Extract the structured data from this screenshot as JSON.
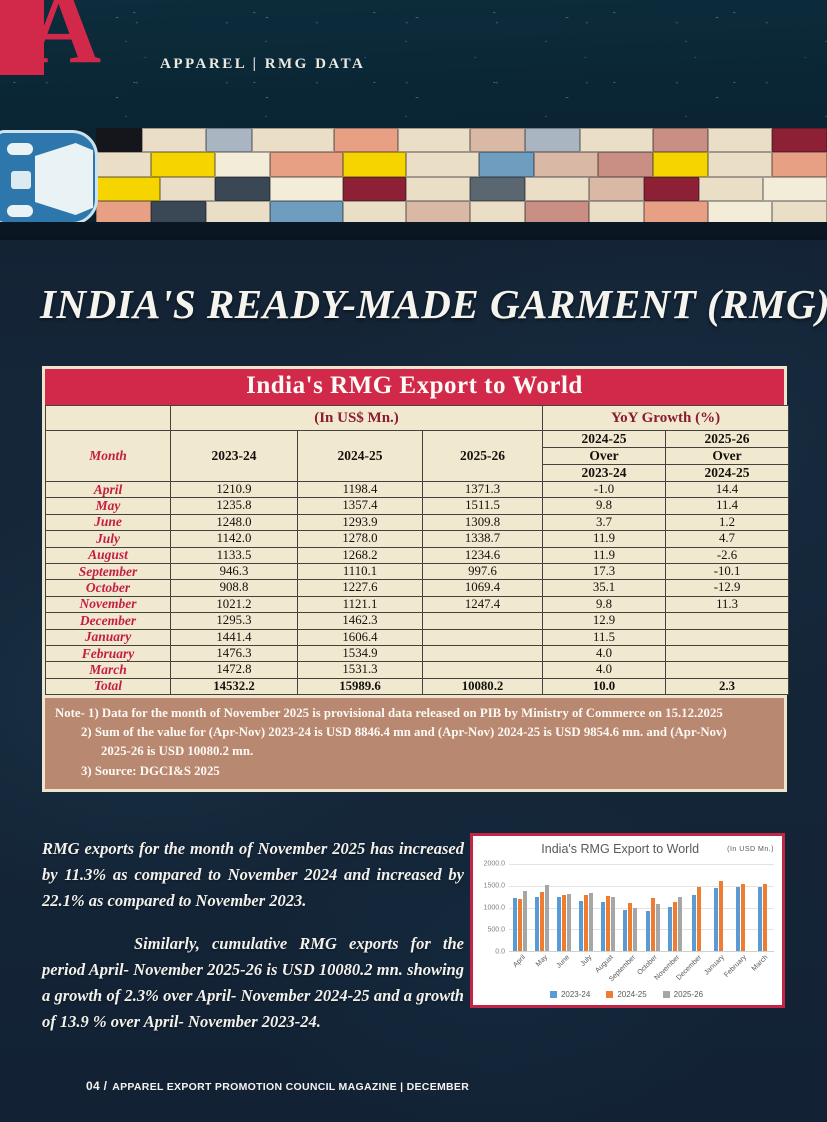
{
  "header": {
    "logo_letter": "A",
    "tagline": "APPAREL | RMG DATA"
  },
  "page_title": "INDIA'S READY-MADE GARMENT (RMG)",
  "table": {
    "title": "India's RMG Export to World",
    "unit_header": "(In US$ Mn.)",
    "yoy_header": "YoY Growth (%)",
    "month_header": "Month",
    "year_columns": [
      "2023-24",
      "2024-25",
      "2025-26"
    ],
    "yoy_col1": [
      "2024-25",
      "Over",
      "2023-24"
    ],
    "yoy_col2": [
      "2025-26",
      "Over",
      "2024-25"
    ],
    "rows": [
      {
        "month": "April",
        "v2023": "1210.9",
        "v2024": "1198.4",
        "v2025": "1371.3",
        "g1": "-1.0",
        "g2": "14.4"
      },
      {
        "month": "May",
        "v2023": "1235.8",
        "v2024": "1357.4",
        "v2025": "1511.5",
        "g1": "9.8",
        "g2": "11.4"
      },
      {
        "month": "June",
        "v2023": "1248.0",
        "v2024": "1293.9",
        "v2025": "1309.8",
        "g1": "3.7",
        "g2": "1.2"
      },
      {
        "month": "July",
        "v2023": "1142.0",
        "v2024": "1278.0",
        "v2025": "1338.7",
        "g1": "11.9",
        "g2": "4.7"
      },
      {
        "month": "August",
        "v2023": "1133.5",
        "v2024": "1268.2",
        "v2025": "1234.6",
        "g1": "11.9",
        "g2": "-2.6"
      },
      {
        "month": "September",
        "v2023": "946.3",
        "v2024": "1110.1",
        "v2025": "997.6",
        "g1": "17.3",
        "g2": "-10.1"
      },
      {
        "month": "October",
        "v2023": "908.8",
        "v2024": "1227.6",
        "v2025": "1069.4",
        "g1": "35.1",
        "g2": "-12.9"
      },
      {
        "month": "November",
        "v2023": "1021.2",
        "v2024": "1121.1",
        "v2025": "1247.4",
        "g1": "9.8",
        "g2": "11.3"
      },
      {
        "month": "December",
        "v2023": "1295.3",
        "v2024": "1462.3",
        "v2025": "",
        "g1": "12.9",
        "g2": ""
      },
      {
        "month": "January",
        "v2023": "1441.4",
        "v2024": "1606.4",
        "v2025": "",
        "g1": "11.5",
        "g2": ""
      },
      {
        "month": "February",
        "v2023": "1476.3",
        "v2024": "1534.9",
        "v2025": "",
        "g1": "4.0",
        "g2": ""
      },
      {
        "month": "March",
        "v2023": "1472.8",
        "v2024": "1531.3",
        "v2025": "",
        "g1": "4.0",
        "g2": ""
      },
      {
        "month": "Total",
        "v2023": "14532.2",
        "v2024": "15989.6",
        "v2025": "10080.2",
        "g1": "10.0",
        "g2": "2.3",
        "total": true
      }
    ]
  },
  "note": {
    "lines": [
      "Note- 1) Data for the month of November 2025 is provisional data released on PIB by Ministry of Commerce on 15.12.2025",
      "2) Sum of the value for (Apr-Nov) 2023-24 is USD 8846.4 mn and (Apr-Nov) 2024-25 is USD 9854.6 mn. and (Apr-Nov)",
      "2025-26 is USD 10080.2 mn.",
      "3) Source: DGCI&S 2025"
    ]
  },
  "body": {
    "paragraph1": "RMG exports for the month of November 2025 has increased by 11.3% as compared to November 2024 and increased by 22.1% as compared to November 2023.",
    "paragraph2": "Similarly, cumulative RMG exports for the period April- November 2025-26 is USD 10080.2 mn. showing a growth of 2.3% over April- November 2024-25 and a growth of 13.9 % over April- November 2023-24."
  },
  "chart_data": {
    "type": "bar",
    "title": "India's RMG Export to World",
    "unit_label": "(In USD Mn.)",
    "categories": [
      "April",
      "May",
      "June",
      "July",
      "August",
      "September",
      "October",
      "November",
      "December",
      "January",
      "February",
      "March"
    ],
    "series": [
      {
        "name": "2023-24",
        "color": "#5b9bd5",
        "values": [
          1210.9,
          1235.8,
          1248.0,
          1142.0,
          1133.5,
          946.3,
          908.8,
          1021.2,
          1295.3,
          1441.4,
          1476.3,
          1472.8
        ]
      },
      {
        "name": "2024-25",
        "color": "#ed7d31",
        "values": [
          1198.4,
          1357.4,
          1293.9,
          1278.0,
          1268.2,
          1110.1,
          1227.6,
          1121.1,
          1462.3,
          1606.4,
          1534.9,
          1531.3
        ]
      },
      {
        "name": "2025-26",
        "color": "#a6a6a6",
        "values": [
          1371.3,
          1511.5,
          1309.8,
          1338.7,
          1234.6,
          997.6,
          1069.4,
          1247.4,
          null,
          null,
          null,
          null
        ]
      }
    ],
    "ylim": [
      0,
      2000
    ],
    "yticks": [
      0,
      500,
      1000,
      1500,
      2000
    ],
    "ytick_labels": [
      "0.0",
      "500.0",
      "1000.0",
      "1500.0",
      "2000.0"
    ],
    "grid": true,
    "legend_position": "bottom"
  },
  "footer": {
    "page_number": "04 /",
    "text": "APPAREL EXPORT PROMOTION COUNCIL MAGAZINE | DECEMBER"
  },
  "colors": {
    "accent_red": "#d2294a",
    "cream": "#f1e8d0",
    "note_bg": "#b98871",
    "navy_bg": "#15263a",
    "month_red": "#c41f3e"
  },
  "banner": {
    "container_palette": [
      "#14161c",
      "#eadec6",
      "#a9b6c2",
      "#f6d400",
      "#e7a083",
      "#8e2036",
      "#6e9dbf",
      "#d9b9a5",
      "#c98f85",
      "#f3ecd9",
      "#5b6770",
      "#3a4754"
    ]
  }
}
